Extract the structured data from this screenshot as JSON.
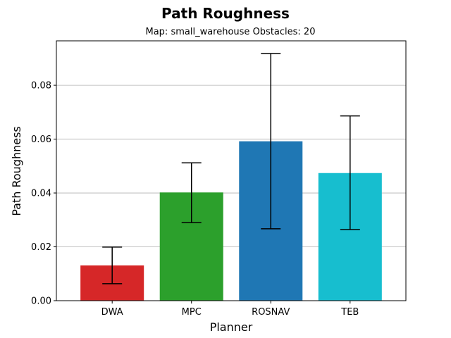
{
  "chart_data": {
    "type": "bar",
    "title": "Path Roughness",
    "subtitle": "Map: small_warehouse Obstacles: 20",
    "xlabel": "Planner",
    "ylabel": "Path Roughness",
    "categories": [
      "DWA",
      "MPC",
      "ROSNAV",
      "TEB"
    ],
    "values": [
      0.0131,
      0.0402,
      0.0592,
      0.0474
    ],
    "error_low": [
      0.0063,
      0.029,
      0.0267,
      0.0264
    ],
    "error_high": [
      0.0199,
      0.0512,
      0.0918,
      0.0686
    ],
    "colors": [
      "#d62728",
      "#2ca02c",
      "#1f77b4",
      "#17becf"
    ],
    "ylim": [
      0,
      0.0965
    ],
    "yticks": [
      0.0,
      0.02,
      0.04,
      0.06,
      0.08
    ],
    "ytick_labels": [
      "0.00",
      "0.02",
      "0.04",
      "0.06",
      "0.08"
    ],
    "grid": "y"
  }
}
